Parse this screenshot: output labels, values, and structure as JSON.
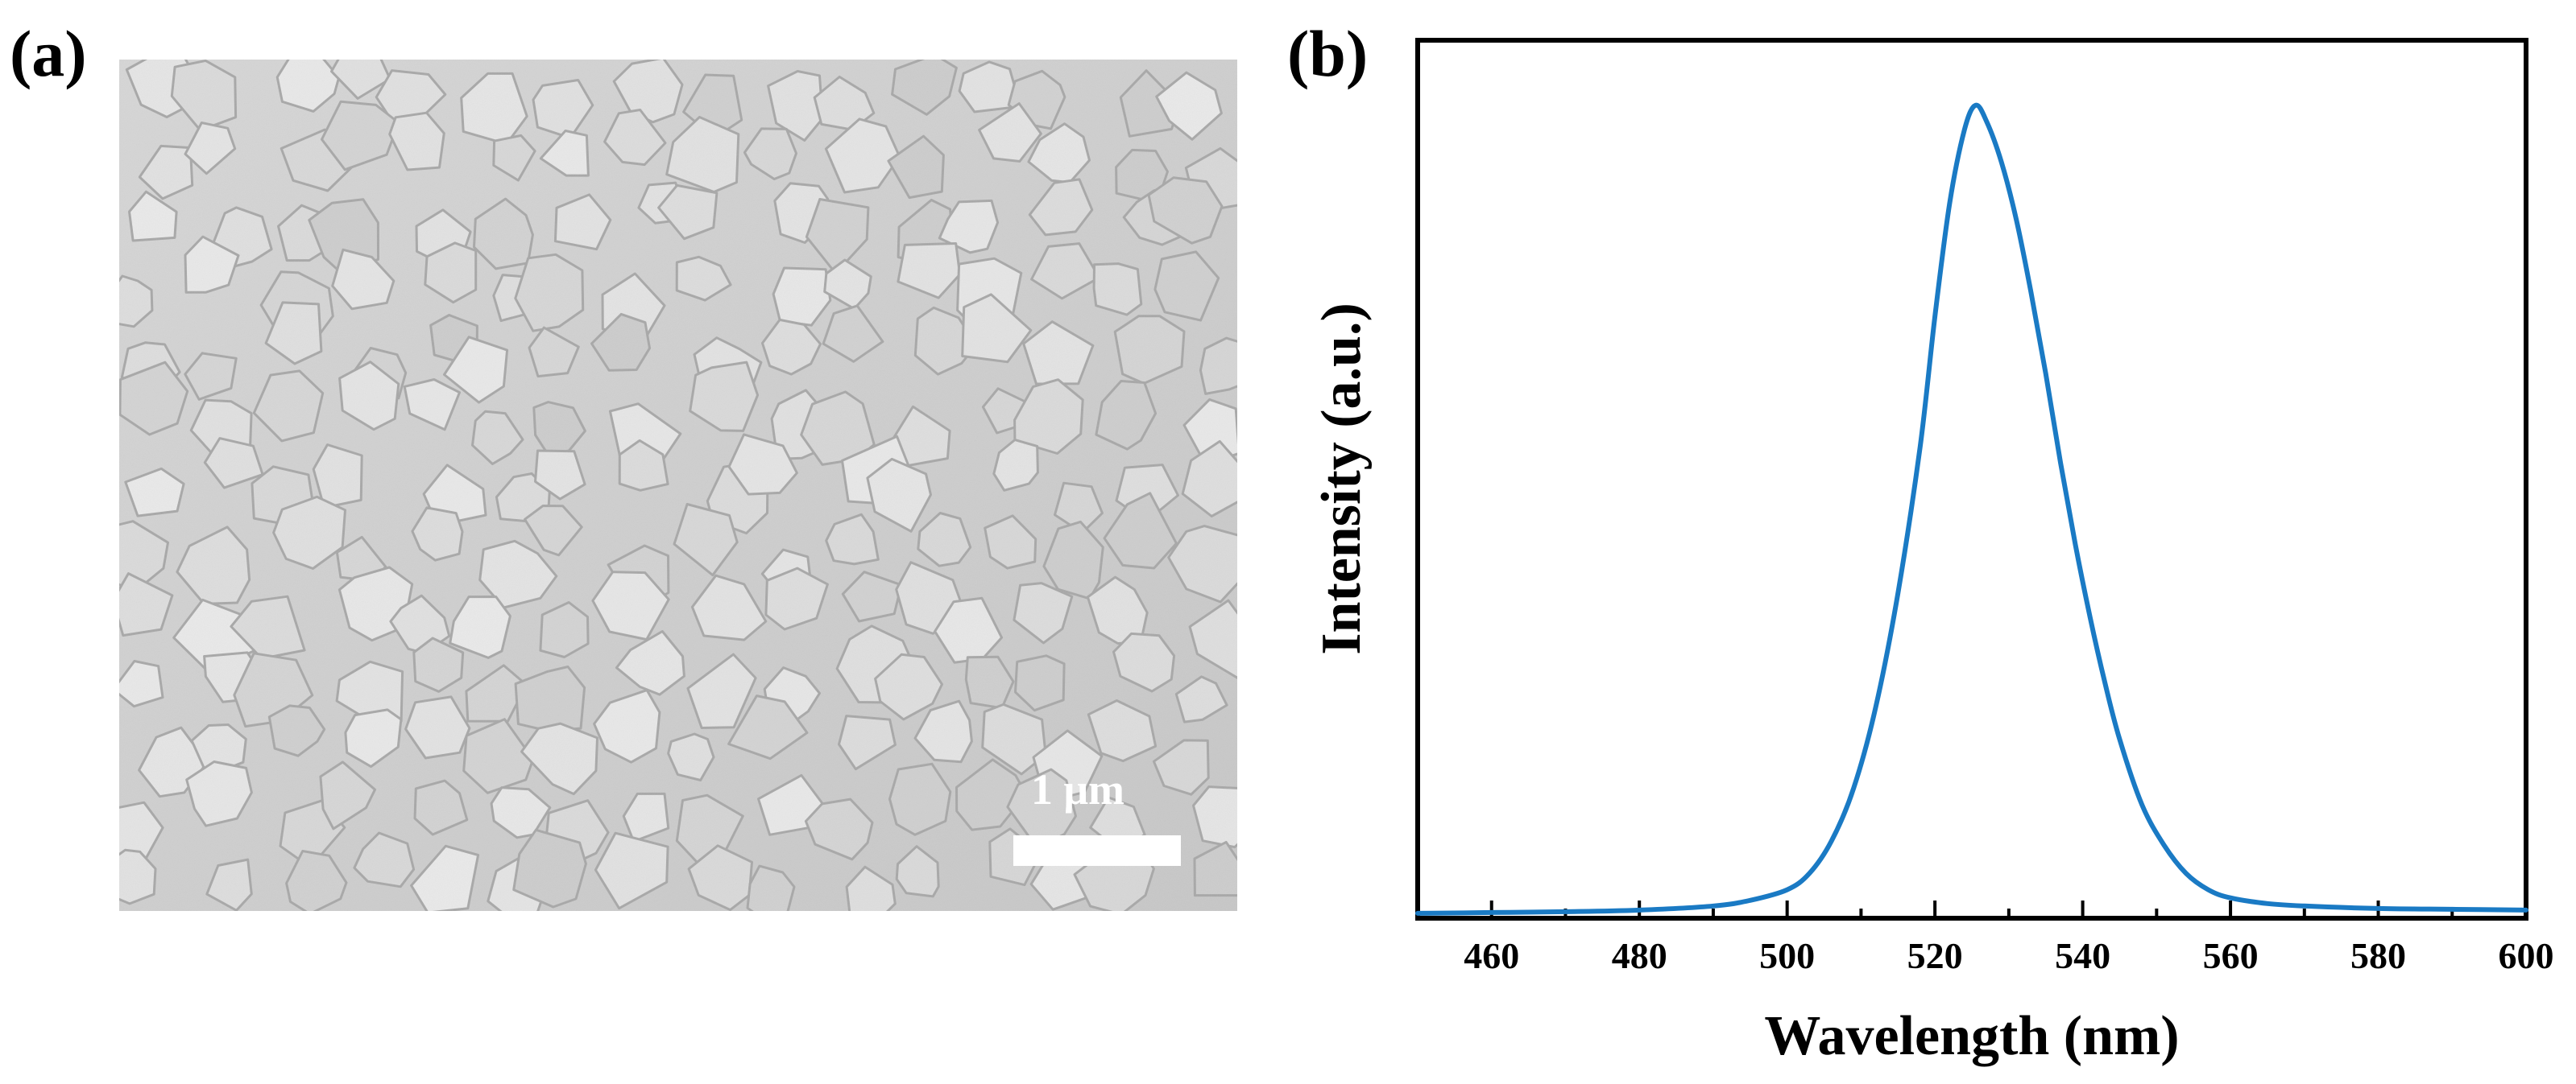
{
  "panels": {
    "a": {
      "label": "(a)",
      "scale_bar_text": "1 μm"
    },
    "b": {
      "label": "(b)"
    }
  },
  "chart_data": {
    "type": "line",
    "xlabel": "Wavelength (nm)",
    "ylabel": "Intensity (a.u.)",
    "xlim": [
      450,
      600
    ],
    "ylim": [
      0,
      1.08
    ],
    "x_ticks": [
      "460",
      "480",
      "500",
      "520",
      "540",
      "560",
      "580",
      "600"
    ],
    "y_ticks": [],
    "grid": false,
    "color": "#1a7ac4",
    "series": [
      {
        "x": [
          450,
          460,
          470,
          480,
          490,
          495,
          500,
          503,
          506,
          509,
          512,
          515,
          518,
          520,
          522,
          524,
          525.5,
          527,
          529,
          531,
          533,
          535,
          537,
          539,
          541,
          543,
          545,
          548,
          551,
          554,
          557,
          560,
          565,
          570,
          580,
          590,
          600
        ],
        "y": [
          0.006,
          0.007,
          0.008,
          0.01,
          0.015,
          0.022,
          0.035,
          0.055,
          0.095,
          0.16,
          0.26,
          0.4,
          0.58,
          0.74,
          0.88,
          0.97,
          1.0,
          0.98,
          0.93,
          0.86,
          0.77,
          0.67,
          0.56,
          0.46,
          0.37,
          0.29,
          0.22,
          0.14,
          0.09,
          0.055,
          0.035,
          0.025,
          0.018,
          0.015,
          0.012,
          0.011,
          0.01
        ]
      }
    ]
  }
}
